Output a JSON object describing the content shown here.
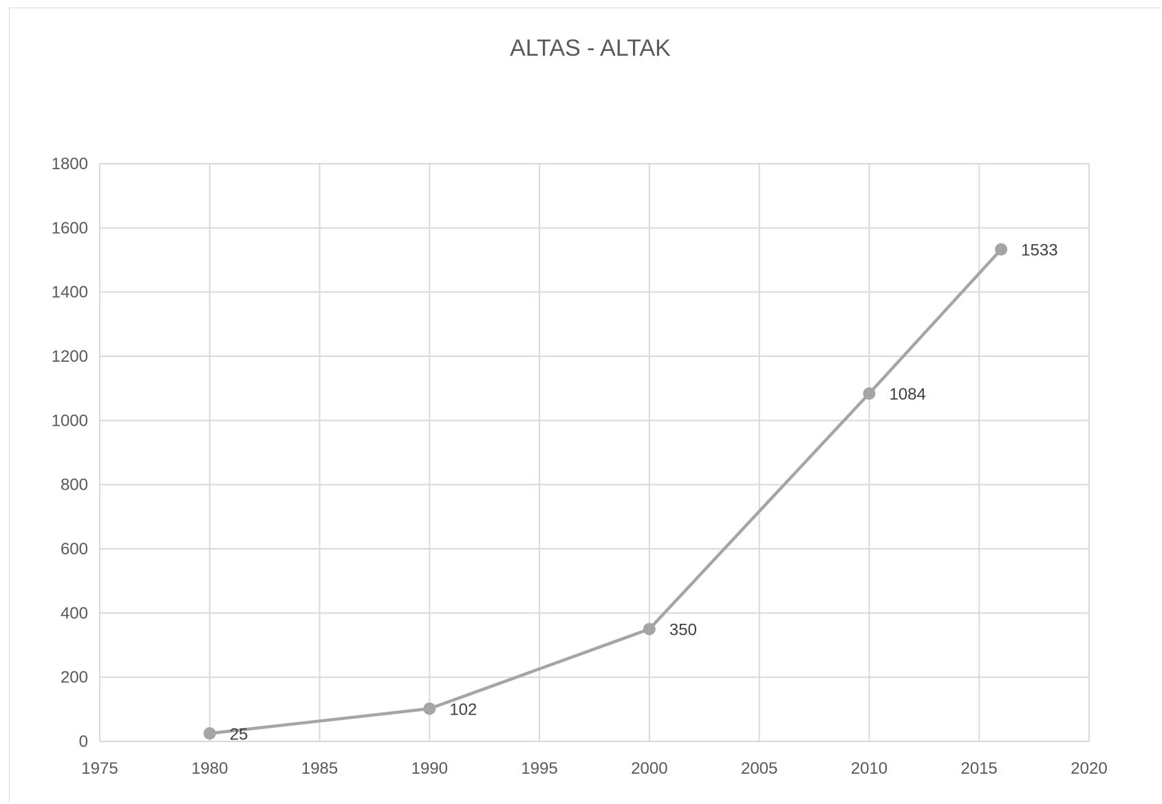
{
  "chart_data": {
    "type": "scatter",
    "title": "ALTAS - ALTAK",
    "xlabel": "",
    "ylabel": "",
    "xlim": [
      1975,
      2020
    ],
    "ylim": [
      0,
      1800
    ],
    "xticks": [
      "1975",
      "1980",
      "1985",
      "1990",
      "1995",
      "2000",
      "2005",
      "2010",
      "2015",
      "2020"
    ],
    "yticks": [
      "0",
      "200",
      "400",
      "600",
      "800",
      "1000",
      "1200",
      "1400",
      "1600",
      "1800"
    ],
    "grid": true,
    "legend": "none",
    "line_color": "#a5a5a5",
    "series": [
      {
        "x": [
          1980,
          1990,
          2000,
          2010,
          2016
        ],
        "values": [
          25,
          102,
          350,
          1084,
          1533
        ],
        "labels": [
          "25",
          "102",
          "350",
          "1084",
          "1533"
        ]
      }
    ]
  }
}
